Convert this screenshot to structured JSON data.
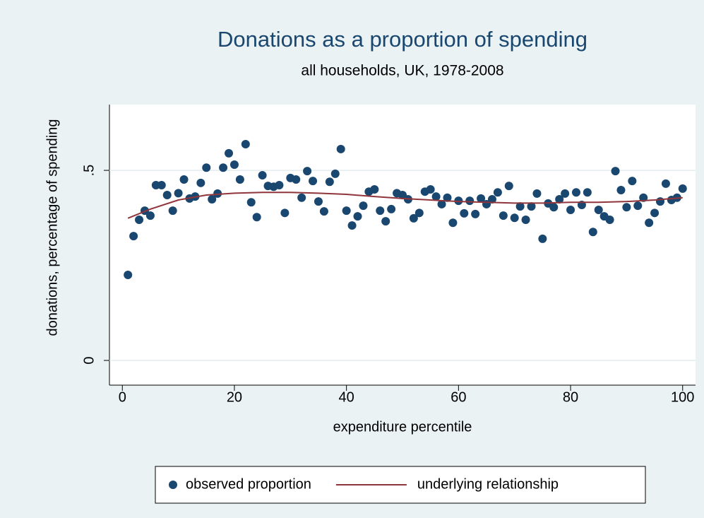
{
  "chart_data": {
    "type": "scatter",
    "title": "Donations as a proportion of spending",
    "subtitle": "all households, UK, 1978-2008",
    "x_label": "expenditure percentile",
    "y_label": "donations, percentage of spending",
    "xlim": [
      -2.3,
      102.3
    ],
    "ylim": [
      -0.065,
      0.673
    ],
    "xticks": [
      0,
      20,
      40,
      60,
      80,
      100
    ],
    "yticks": [
      0,
      {
        "value": 0.5,
        "label": ".5"
      }
    ],
    "grid": true,
    "legend": "bottom",
    "series": [
      {
        "name": "observed proportion",
        "type": "scatter",
        "color": "#1a476f",
        "x": [
          1,
          2,
          3,
          4,
          5,
          6,
          7,
          8,
          9,
          10,
          11,
          12,
          13,
          14,
          15,
          16,
          17,
          18,
          19,
          20,
          21,
          22,
          23,
          24,
          25,
          26,
          27,
          28,
          29,
          30,
          31,
          32,
          33,
          34,
          35,
          36,
          37,
          38,
          39,
          40,
          41,
          42,
          43,
          44,
          45,
          46,
          47,
          48,
          49,
          50,
          51,
          52,
          53,
          54,
          55,
          56,
          57,
          58,
          59,
          60,
          61,
          62,
          63,
          64,
          65,
          66,
          67,
          68,
          69,
          70,
          71,
          72,
          73,
          74,
          75,
          76,
          77,
          78,
          79,
          80,
          81,
          82,
          83,
          84,
          85,
          86,
          87,
          88,
          89,
          90,
          91,
          92,
          93,
          94,
          95,
          96,
          97,
          98,
          99,
          100
        ],
        "values": [
          0.225,
          0.327,
          0.37,
          0.394,
          0.381,
          0.461,
          0.461,
          0.435,
          0.394,
          0.44,
          0.476,
          0.426,
          0.431,
          0.467,
          0.507,
          0.424,
          0.439,
          0.507,
          0.545,
          0.515,
          0.476,
          0.569,
          0.416,
          0.377,
          0.487,
          0.459,
          0.457,
          0.461,
          0.388,
          0.48,
          0.476,
          0.428,
          0.498,
          0.472,
          0.418,
          0.392,
          0.47,
          0.491,
          0.556,
          0.394,
          0.355,
          0.379,
          0.407,
          0.444,
          0.45,
          0.394,
          0.366,
          0.398,
          0.44,
          0.435,
          0.424,
          0.374,
          0.388,
          0.444,
          0.45,
          0.431,
          0.411,
          0.428,
          0.362,
          0.42,
          0.387,
          0.42,
          0.385,
          0.426,
          0.411,
          0.424,
          0.442,
          0.381,
          0.459,
          0.375,
          0.405,
          0.37,
          0.405,
          0.439,
          0.32,
          0.413,
          0.403,
          0.424,
          0.439,
          0.396,
          0.442,
          0.409,
          0.442,
          0.338,
          0.396,
          0.379,
          0.37,
          0.498,
          0.448,
          0.403,
          0.472,
          0.407,
          0.428,
          0.362,
          0.388,
          0.418,
          0.465,
          0.422,
          0.428,
          0.452
        ]
      },
      {
        "name": "underlying relationship",
        "type": "line",
        "color": "#90353b",
        "x": [
          1,
          5,
          10,
          15,
          20,
          25,
          30,
          35,
          40,
          45,
          50,
          55,
          60,
          65,
          70,
          75,
          80,
          85,
          90,
          95,
          100
        ],
        "values": [
          0.374,
          0.398,
          0.422,
          0.435,
          0.44,
          0.442,
          0.442,
          0.44,
          0.437,
          0.431,
          0.426,
          0.422,
          0.418,
          0.416,
          0.414,
          0.414,
          0.416,
          0.416,
          0.418,
          0.422,
          0.428
        ]
      }
    ]
  }
}
